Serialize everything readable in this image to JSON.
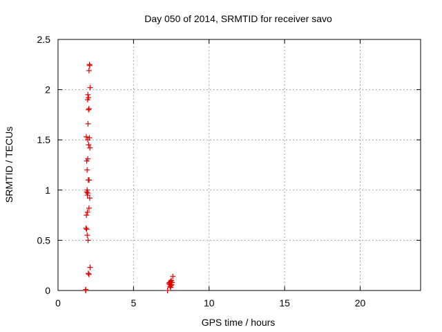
{
  "chart_data": {
    "type": "scatter",
    "title": "Day 050 of 2014, SRMTID for receiver savo",
    "xlabel": "GPS time / hours",
    "ylabel": "SRMTID / TECUs",
    "xlim": [
      0,
      24
    ],
    "ylim": [
      0,
      2.5
    ],
    "xticks": [
      0,
      5,
      10,
      15,
      20
    ],
    "yticks": [
      0,
      0.5,
      1,
      1.5,
      2,
      2.5
    ],
    "grid": true,
    "marker": "plus",
    "color": "#e00000",
    "series": [
      {
        "x": [
          2.08,
          2.1,
          2.05,
          2.12,
          1.98,
          2.02,
          1.96,
          2.05,
          2.02,
          1.99,
          1.87,
          1.97,
          2.08,
          2.03,
          2.11,
          1.9,
          1.97,
          1.93,
          2.0,
          2.06,
          1.93,
          1.97,
          1.9,
          1.95,
          2.1,
          2.05,
          1.95,
          1.88,
          1.85,
          1.9,
          1.93,
          1.99,
          2.12,
          2.01,
          2.05,
          1.82,
          1.84,
          7.25,
          7.35,
          7.4,
          7.45,
          7.5,
          7.55,
          7.42,
          7.48,
          7.52,
          7.38,
          7.6,
          7.45
        ],
        "y": [
          2.25,
          2.24,
          2.19,
          2.02,
          1.95,
          1.92,
          1.9,
          1.81,
          1.8,
          1.66,
          1.53,
          1.5,
          1.52,
          1.45,
          1.42,
          1.29,
          1.31,
          1.2,
          1.1,
          1.1,
          1.0,
          0.97,
          0.98,
          0.95,
          0.92,
          0.82,
          0.78,
          0.75,
          0.62,
          0.61,
          0.55,
          0.5,
          0.23,
          0.17,
          0.16,
          0.0,
          0.01,
          0.0,
          0.07,
          0.06,
          0.09,
          0.1,
          0.08,
          0.04,
          0.05,
          0.06,
          0.08,
          0.14,
          0.03
        ]
      }
    ]
  }
}
